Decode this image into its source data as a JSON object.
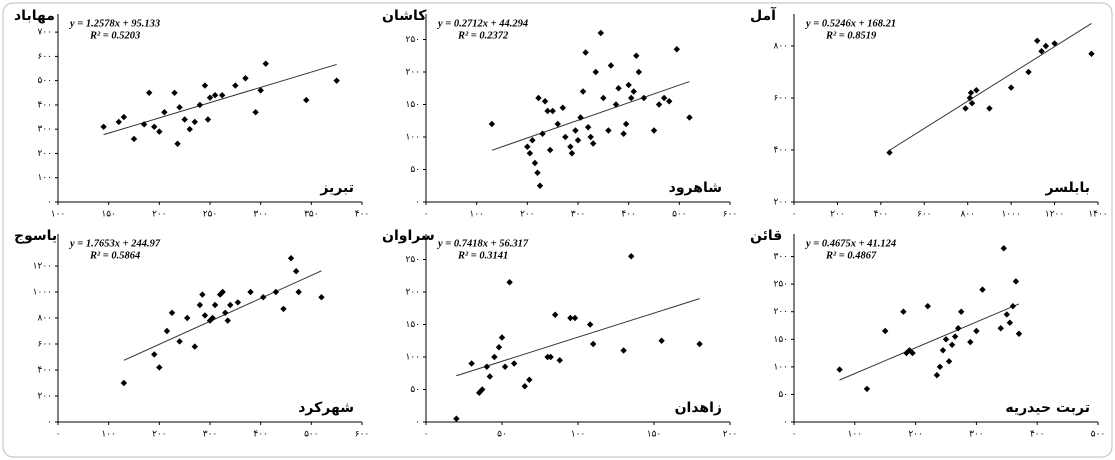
{
  "chart_data": [
    {
      "type": "scatter",
      "title": "مهاباد",
      "label": "تبریز",
      "annotations": [
        "y = 1.2578x + 95.133",
        "R² = 0.5203"
      ],
      "color": "#000000",
      "x": [
        145,
        160,
        165,
        175,
        185,
        190,
        195,
        200,
        205,
        215,
        218,
        220,
        225,
        230,
        235,
        240,
        245,
        248,
        250,
        255,
        262,
        275,
        285,
        295,
        300,
        305,
        345,
        375
      ],
      "values": [
        310,
        330,
        350,
        260,
        320,
        450,
        310,
        290,
        370,
        450,
        240,
        390,
        340,
        300,
        330,
        400,
        480,
        340,
        430,
        440,
        440,
        480,
        510,
        370,
        460,
        570,
        420,
        500
      ],
      "trendline": {
        "slope": 1.2578,
        "intercept": 95.133
      },
      "xlim": [
        100,
        400
      ],
      "xticks": [
        {
          "value": 100,
          "label": "۱۰۰"
        },
        {
          "value": 150,
          "label": "۱۵۰"
        },
        {
          "value": 200,
          "label": "۲۰۰"
        },
        {
          "value": 250,
          "label": "۲۵۰"
        },
        {
          "value": 300,
          "label": "۳۰۰"
        },
        {
          "value": 350,
          "label": "۳۵۰"
        },
        {
          "value": 400,
          "label": "۴۰۰"
        }
      ],
      "ylim": [
        0,
        750
      ],
      "yticks": [
        {
          "value": 0,
          "label": "۰"
        },
        {
          "value": 100,
          "label": "۱۰۰"
        },
        {
          "value": 200,
          "label": "۲۰۰"
        },
        {
          "value": 300,
          "label": "۳۰۰"
        },
        {
          "value": 400,
          "label": "۴۰۰"
        },
        {
          "value": 500,
          "label": "۵۰۰"
        },
        {
          "value": 600,
          "label": "۶۰۰"
        },
        {
          "value": 700,
          "label": "۷۰۰"
        }
      ]
    },
    {
      "type": "scatter",
      "title": "کاشان",
      "label": "شاهرود",
      "annotations": [
        "y = 0.2712x + 44.294",
        "R² = 0.2372"
      ],
      "color": "#000000",
      "x": [
        130,
        200,
        205,
        210,
        215,
        220,
        225,
        222,
        230,
        235,
        240,
        245,
        250,
        260,
        270,
        275,
        285,
        288,
        295,
        300,
        305,
        310,
        315,
        320,
        325,
        330,
        335,
        345,
        350,
        360,
        365,
        375,
        380,
        390,
        395,
        400,
        405,
        410,
        415,
        420,
        430,
        450,
        460,
        470,
        480,
        495,
        520
      ],
      "values": [
        120,
        85,
        75,
        95,
        60,
        45,
        25,
        160,
        105,
        155,
        140,
        80,
        140,
        120,
        145,
        100,
        85,
        75,
        110,
        95,
        130,
        170,
        230,
        115,
        100,
        90,
        200,
        260,
        160,
        110,
        210,
        150,
        175,
        105,
        120,
        180,
        160,
        170,
        225,
        200,
        160,
        110,
        150,
        160,
        155,
        235,
        130
      ],
      "trendline": {
        "slope": 0.2712,
        "intercept": 44.294
      },
      "xlim": [
        0,
        600
      ],
      "xticks": [
        {
          "value": 0,
          "label": "۰"
        },
        {
          "value": 100,
          "label": "۱۰۰"
        },
        {
          "value": 200,
          "label": "۲۰۰"
        },
        {
          "value": 300,
          "label": "۳۰۰"
        },
        {
          "value": 400,
          "label": "۴۰۰"
        },
        {
          "value": 500,
          "label": "۵۰۰"
        },
        {
          "value": 600,
          "label": "۶۰۰"
        }
      ],
      "ylim": [
        0,
        280
      ],
      "yticks": [
        {
          "value": 0,
          "label": "۰"
        },
        {
          "value": 50,
          "label": "۵۰"
        },
        {
          "value": 100,
          "label": "۱۰۰"
        },
        {
          "value": 150,
          "label": "۱۵۰"
        },
        {
          "value": 200,
          "label": "۲۰۰"
        },
        {
          "value": 250,
          "label": "۲۵۰"
        }
      ]
    },
    {
      "type": "scatter",
      "title": "آمل",
      "label": "بابلسر",
      "annotations": [
        "y = 0.5246x + 168.21",
        "R² = 0.8519"
      ],
      "color": "#000000",
      "x": [
        440,
        790,
        810,
        815,
        820,
        840,
        900,
        1000,
        1080,
        1120,
        1140,
        1160,
        1200,
        1370
      ],
      "values": [
        390,
        560,
        600,
        620,
        580,
        630,
        560,
        640,
        700,
        820,
        780,
        800,
        810,
        770
      ],
      "trendline": {
        "slope": 0.5246,
        "intercept": 168.21
      },
      "xlim": [
        0,
        1400
      ],
      "xticks": [
        {
          "value": 0,
          "label": "۰"
        },
        {
          "value": 200,
          "label": "۲۰۰"
        },
        {
          "value": 400,
          "label": "۴۰۰"
        },
        {
          "value": 600,
          "label": "۶۰۰"
        },
        {
          "value": 800,
          "label": "۸۰۰"
        },
        {
          "value": 1000,
          "label": "۱۰۰۰"
        },
        {
          "value": 1200,
          "label": "۱۲۰۰"
        },
        {
          "value": 1400,
          "label": "۱۴۰۰"
        }
      ],
      "ylim": [
        200,
        900
      ],
      "yticks": [
        {
          "value": 200,
          "label": "۲۰۰"
        },
        {
          "value": 400,
          "label": "۴۰۰"
        },
        {
          "value": 600,
          "label": "۶۰۰"
        },
        {
          "value": 800,
          "label": "۸۰۰"
        }
      ]
    },
    {
      "type": "scatter",
      "title": "یاسوج",
      "label": "شهرکرد",
      "annotations": [
        "y = 1.7653x + 244.97",
        "R² = 0.5864"
      ],
      "color": "#000000",
      "x": [
        130,
        190,
        200,
        215,
        225,
        240,
        255,
        270,
        280,
        285,
        290,
        300,
        305,
        310,
        320,
        325,
        330,
        335,
        340,
        355,
        380,
        405,
        430,
        445,
        460,
        470,
        475,
        520
      ],
      "values": [
        300,
        520,
        420,
        700,
        840,
        620,
        800,
        580,
        900,
        980,
        820,
        780,
        800,
        900,
        980,
        1000,
        840,
        780,
        900,
        920,
        1000,
        960,
        1000,
        870,
        1260,
        1160,
        1000,
        960
      ],
      "trendline": {
        "slope": 1.7653,
        "intercept": 244.97
      },
      "xlim": [
        0,
        600
      ],
      "xticks": [
        {
          "value": 0,
          "label": "۰"
        },
        {
          "value": 100,
          "label": "۱۰۰"
        },
        {
          "value": 200,
          "label": "۲۰۰"
        },
        {
          "value": 300,
          "label": "۳۰۰"
        },
        {
          "value": 400,
          "label": "۴۰۰"
        },
        {
          "value": 500,
          "label": "۵۰۰"
        },
        {
          "value": 600,
          "label": "۶۰۰"
        }
      ],
      "ylim": [
        0,
        1400
      ],
      "yticks": [
        {
          "value": 0,
          "label": "۰"
        },
        {
          "value": 200,
          "label": "۲۰۰"
        },
        {
          "value": 400,
          "label": "۴۰۰"
        },
        {
          "value": 600,
          "label": "۶۰۰"
        },
        {
          "value": 800,
          "label": "۸۰۰"
        },
        {
          "value": 1000,
          "label": "۱۰۰۰"
        },
        {
          "value": 1200,
          "label": "۱۲۰۰"
        }
      ]
    },
    {
      "type": "scatter",
      "title": "سراوان",
      "label": "زاهدان",
      "annotations": [
        "y = 0.7418x + 56.317",
        "R² = 0.3141"
      ],
      "color": "#000000",
      "x": [
        20,
        30,
        35,
        37,
        40,
        42,
        45,
        48,
        50,
        52,
        55,
        58,
        65,
        68,
        80,
        82,
        85,
        88,
        95,
        98,
        108,
        110,
        130,
        135,
        155,
        180
      ],
      "values": [
        5,
        90,
        45,
        50,
        85,
        70,
        100,
        115,
        130,
        85,
        215,
        90,
        55,
        65,
        100,
        100,
        165,
        95,
        160,
        160,
        150,
        120,
        110,
        255,
        125,
        120
      ],
      "trendline": {
        "slope": 0.7418,
        "intercept": 56.317
      },
      "xlim": [
        0,
        200
      ],
      "xticks": [
        {
          "value": 0,
          "label": "۰"
        },
        {
          "value": 50,
          "label": "۵۰"
        },
        {
          "value": 100,
          "label": "۱۰۰"
        },
        {
          "value": 150,
          "label": "۱۵۰"
        },
        {
          "value": 200,
          "label": "۲۰۰"
        }
      ],
      "ylim": [
        0,
        280
      ],
      "yticks": [
        {
          "value": 0,
          "label": "۰"
        },
        {
          "value": 50,
          "label": "۵۰"
        },
        {
          "value": 100,
          "label": "۱۰۰"
        },
        {
          "value": 150,
          "label": "۱۵۰"
        },
        {
          "value": 200,
          "label": "۲۰۰"
        },
        {
          "value": 250,
          "label": "۲۵۰"
        }
      ]
    },
    {
      "type": "scatter",
      "title": "قائن",
      "label": "تربت حیدریه",
      "annotations": [
        "y = 0.4675x + 41.124",
        "R² = 0.4867"
      ],
      "color": "#000000",
      "x": [
        75,
        120,
        150,
        180,
        185,
        190,
        195,
        220,
        235,
        240,
        245,
        250,
        255,
        260,
        265,
        270,
        275,
        290,
        300,
        310,
        340,
        345,
        350,
        355,
        360,
        365,
        370
      ],
      "values": [
        95,
        60,
        165,
        200,
        125,
        130,
        125,
        210,
        85,
        100,
        130,
        150,
        110,
        140,
        155,
        170,
        200,
        145,
        165,
        240,
        170,
        315,
        195,
        180,
        210,
        255,
        160
      ],
      "trendline": {
        "slope": 0.4675,
        "intercept": 41.124
      },
      "xlim": [
        0,
        500
      ],
      "xticks": [
        {
          "value": 0,
          "label": "۰"
        },
        {
          "value": 100,
          "label": "۱۰۰"
        },
        {
          "value": 200,
          "label": "۲۰۰"
        },
        {
          "value": 300,
          "label": "۳۰۰"
        },
        {
          "value": 400,
          "label": "۴۰۰"
        },
        {
          "value": 500,
          "label": "۵۰۰"
        }
      ],
      "ylim": [
        0,
        330
      ],
      "yticks": [
        {
          "value": 0,
          "label": "۰"
        },
        {
          "value": 50,
          "label": "۵۰"
        },
        {
          "value": 100,
          "label": "۱۰۰"
        },
        {
          "value": 150,
          "label": "۱۵۰"
        },
        {
          "value": 200,
          "label": "۲۰۰"
        },
        {
          "value": 250,
          "label": "۲۵۰"
        },
        {
          "value": 300,
          "label": "۳۰۰"
        }
      ]
    }
  ]
}
